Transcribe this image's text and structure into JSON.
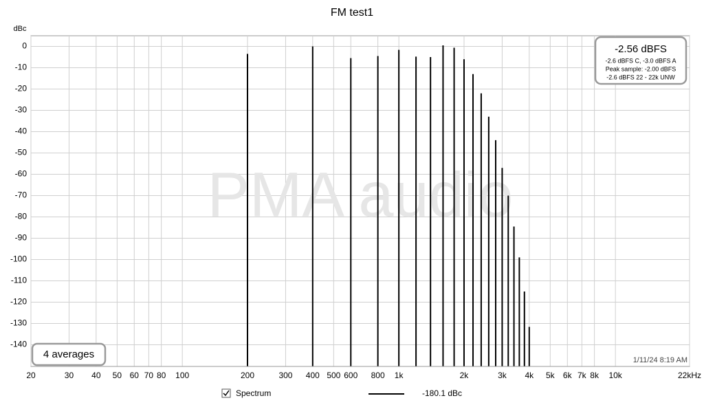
{
  "chart_data": {
    "type": "spectrum",
    "title": "FM test1",
    "y_label": "dBc",
    "x": [
      200,
      400,
      600,
      800,
      1000,
      1200,
      1400,
      1600,
      1800,
      2000,
      2200,
      2400,
      2600,
      2800,
      3000,
      3200,
      3400,
      3600,
      3800,
      4000
    ],
    "series": [
      {
        "name": "Spectrum",
        "color": "#000000",
        "values": [
          -3.5,
          0,
          -5.5,
          -4.5,
          -1.6,
          -4.8,
          -5,
          0.5,
          -0.6,
          -6,
          -13,
          -22,
          -33,
          -44,
          -57,
          -70,
          -84.5,
          -99,
          -115,
          -131.6
        ]
      }
    ],
    "legend_value": "-180.1 dBc",
    "xlim": [
      20,
      22000
    ],
    "log_x": true,
    "xticks": [
      20,
      30,
      40,
      50,
      60,
      70,
      80,
      100,
      200,
      300,
      400,
      500,
      600,
      800,
      {
        "value": 1000,
        "label": "1k"
      },
      {
        "value": 2000,
        "label": "2k"
      },
      {
        "value": 3000,
        "label": "3k"
      },
      {
        "value": 4000,
        "label": "4k"
      },
      {
        "value": 5000,
        "label": "5k"
      },
      {
        "value": 6000,
        "label": "6k"
      },
      {
        "value": 7000,
        "label": "7k"
      },
      {
        "value": 8000,
        "label": "8k"
      },
      {
        "value": 10000,
        "label": "10k"
      },
      {
        "value": 22000,
        "label": "22kHz"
      }
    ],
    "ylim": [
      -150,
      5
    ],
    "yticks": [
      0,
      -10,
      -20,
      -30,
      -40,
      -50,
      -60,
      -70,
      -80,
      -90,
      -100,
      -110,
      -120,
      -130,
      -140
    ],
    "grid": true,
    "info_box": {
      "headline": "-2.56 dBFS",
      "lines": [
        "-2.6 dBFS C, -3.0 dBFS A",
        "Peak sample: -2.00 dBFS",
        "-2.6 dBFS 22 - 22k UNW"
      ]
    },
    "averages": "4 averages",
    "timestamp": "1/11/24 8:19 AM",
    "watermark": "PMA audio"
  }
}
